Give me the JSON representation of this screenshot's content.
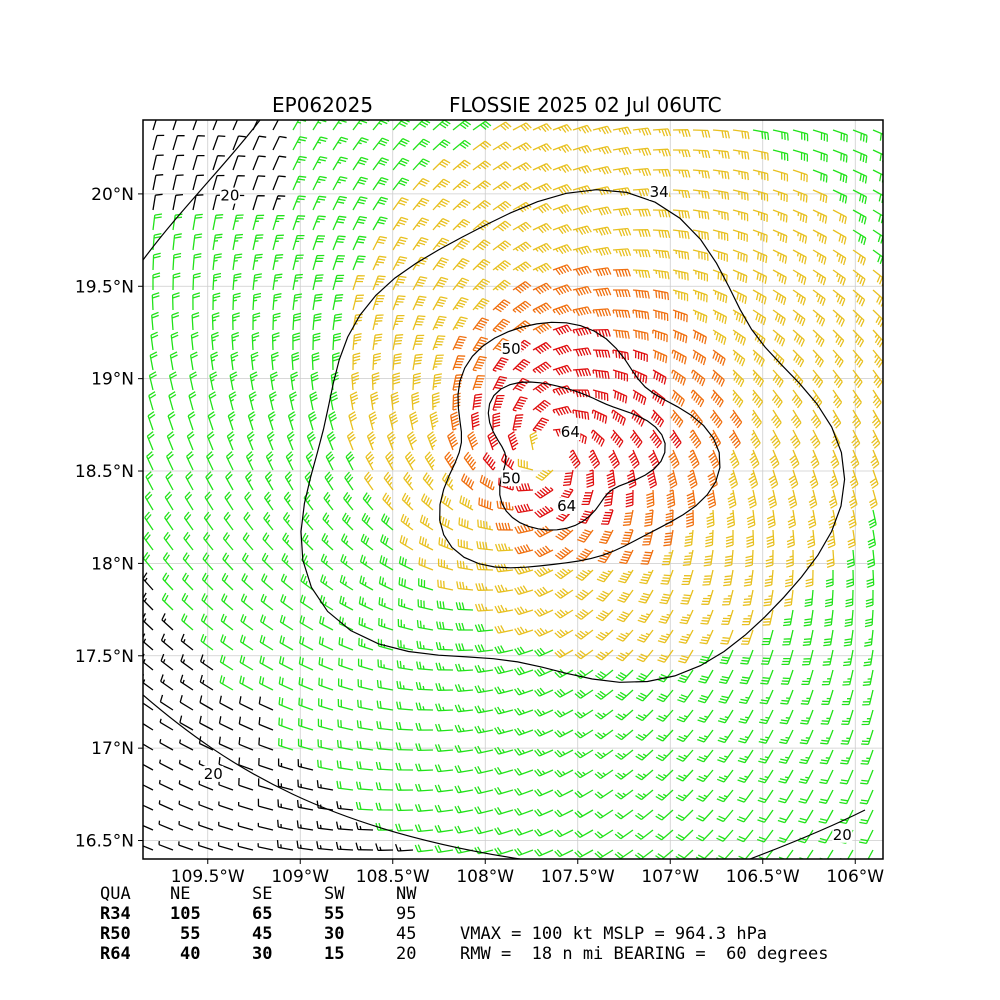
{
  "title": {
    "storm_id": "EP062025",
    "storm_info": "FLOSSIE 2025 02 Jul 06UTC"
  },
  "chart_data": {
    "type": "wind-barb map",
    "xlim": [
      -109.85,
      -105.85
    ],
    "ylim": [
      16.4,
      20.4
    ],
    "x_ticks": [
      {
        "value": -109.5,
        "label": "109.5°W"
      },
      {
        "value": -109.0,
        "label": "109°W"
      },
      {
        "value": -108.5,
        "label": "108.5°W"
      },
      {
        "value": -108.0,
        "label": "108°W"
      },
      {
        "value": -107.5,
        "label": "107.5°W"
      },
      {
        "value": -107.0,
        "label": "107°W"
      },
      {
        "value": -106.5,
        "label": "106.5°W"
      },
      {
        "value": -106.0,
        "label": "106°W"
      }
    ],
    "y_ticks": [
      {
        "value": 16.5,
        "label": "16.5°N"
      },
      {
        "value": 17.0,
        "label": "17°N"
      },
      {
        "value": 17.5,
        "label": "17.5°N"
      },
      {
        "value": 18.0,
        "label": "18°N"
      },
      {
        "value": 18.5,
        "label": "18.5°N"
      },
      {
        "value": 19.0,
        "label": "19°N"
      },
      {
        "value": 19.5,
        "label": "19.5°N"
      },
      {
        "value": 20.0,
        "label": "20°N"
      }
    ],
    "grid": true,
    "storm_center": {
      "lon": -107.67,
      "lat": 18.6
    },
    "contour_labels": [
      {
        "text": "34",
        "lon": -107.06,
        "lat": 20.0
      },
      {
        "text": "50",
        "lon": -107.86,
        "lat": 19.15
      },
      {
        "text": "50",
        "lon": -107.86,
        "lat": 18.45
      },
      {
        "text": "64",
        "lon": -107.54,
        "lat": 18.7
      },
      {
        "text": "64",
        "lon": -107.56,
        "lat": 18.3
      },
      {
        "text": "20",
        "lon": -109.38,
        "lat": 19.98
      },
      {
        "text": "20",
        "lon": -109.47,
        "lat": 16.85
      },
      {
        "text": "20",
        "lon": -106.07,
        "lat": 16.52
      }
    ],
    "speed_colors": [
      {
        "min": 0,
        "max": 20,
        "color": "#000000"
      },
      {
        "min": 20,
        "max": 34,
        "color": "#22e21a"
      },
      {
        "min": 34,
        "max": 50,
        "color": "#e8c020"
      },
      {
        "min": 50,
        "max": 64,
        "color": "#f07010"
      },
      {
        "min": 64,
        "max": 200,
        "color": "#e01010"
      }
    ]
  },
  "table": {
    "header": [
      "QUA",
      "NE",
      "SE",
      "SW",
      "NW"
    ],
    "rows": [
      {
        "label": "R34",
        "ne": "105",
        "se": "65",
        "sw": "55",
        "nw": "95"
      },
      {
        "label": "R50",
        "ne": "55",
        "se": "45",
        "sw": "30",
        "nw": "45"
      },
      {
        "label": "R64",
        "ne": "40",
        "se": "30",
        "sw": "15",
        "nw": "20"
      }
    ]
  },
  "summary": {
    "line1": "VMAX = 100 kt MSLP = 964.3 hPa",
    "line2": "RMW =  18 n mi BEARING =  60 degrees"
  }
}
